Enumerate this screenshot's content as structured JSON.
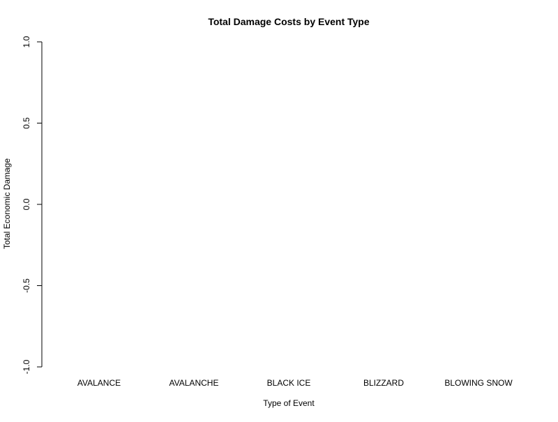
{
  "chart_data": {
    "type": "bar",
    "title": "Total Damage Costs by Event Type",
    "xlabel": "Type of Event",
    "ylabel": "Total Economic Damage",
    "categories": [
      "AVALANCE",
      "AVALANCHE",
      "BLACK ICE",
      "BLIZZARD",
      "BLOWING SNOW"
    ],
    "values": [
      0,
      0,
      0,
      0,
      0
    ],
    "ylim": [
      -1.0,
      1.0
    ],
    "yticks": [
      -1.0,
      -0.5,
      0.0,
      0.5,
      1.0
    ],
    "ytick_labels": [
      "-1.0",
      "-0.5",
      "0.0",
      "0.5",
      "1.0"
    ],
    "grid": false,
    "legend": "none",
    "colors": {
      "background": "#ffffff",
      "bar_fill": "#ffffff",
      "bar_stroke": "#000000",
      "axis": "#000000",
      "text": "#000000"
    }
  }
}
